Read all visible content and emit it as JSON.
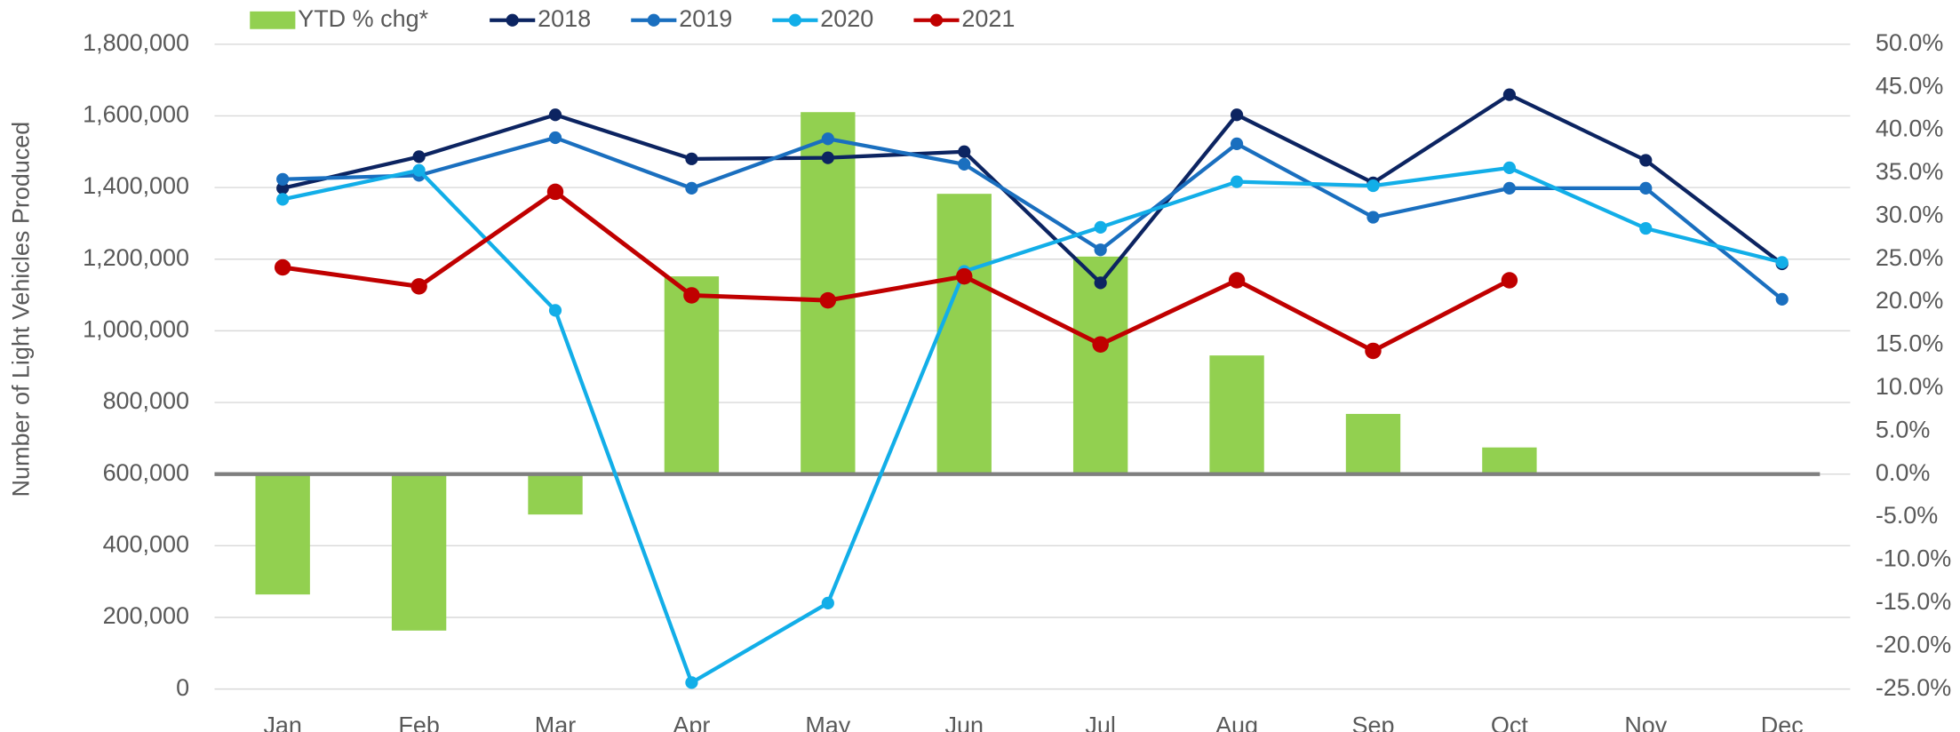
{
  "chart_data": {
    "type": "bar-line",
    "y_axis_label": "Number of Light Vehicles Produced",
    "categories": [
      "Jan",
      "Feb",
      "Mar",
      "Apr",
      "May",
      "Jun",
      "Jul",
      "Aug",
      "Sep",
      "Oct",
      "Nov",
      "Dec"
    ],
    "ylim": [
      0,
      1800000
    ],
    "yticks": [
      0,
      {
        "value": 200000,
        "label": "200,000"
      },
      {
        "value": 400000,
        "label": "400,000"
      },
      {
        "value": 600000,
        "label": "600,000"
      },
      {
        "value": 800000,
        "label": "800,000"
      },
      {
        "value": 1000000,
        "label": "1,000,000"
      },
      {
        "value": 1200000,
        "label": "1,200,000"
      },
      {
        "value": 1400000,
        "label": "1,400,000"
      },
      {
        "value": 1600000,
        "label": "1,600,000"
      },
      {
        "value": 1800000,
        "label": "1,800,000"
      }
    ],
    "y2lim": [
      -25,
      50
    ],
    "y2ticks": [
      {
        "value": -25,
        "label": "-25.0%"
      },
      {
        "value": -20,
        "label": "-20.0%"
      },
      {
        "value": -15,
        "label": "-15.0%"
      },
      {
        "value": -10,
        "label": "-10.0%"
      },
      {
        "value": -5,
        "label": "-5.0%"
      },
      {
        "value": 0,
        "label": "0.0%"
      },
      {
        "value": 5,
        "label": "5.0%"
      },
      {
        "value": 10,
        "label": "10.0%"
      },
      {
        "value": 15,
        "label": "15.0%"
      },
      {
        "value": 20,
        "label": "20.0%"
      },
      {
        "value": 25,
        "label": "25.0%"
      },
      {
        "value": 30,
        "label": "30.0%"
      },
      {
        "value": 35,
        "label": "35.0%"
      },
      {
        "value": 40,
        "label": "40.0%"
      },
      {
        "value": 45,
        "label": "45.0%"
      },
      {
        "value": 50,
        "label": "50.0%"
      }
    ],
    "grid": true,
    "legend": "top",
    "series": [
      {
        "name": "YTD % chg*",
        "type": "bar",
        "axis": "y2",
        "color": "#92d050",
        "values": [
          -14.0,
          -18.2,
          -4.7,
          23.0,
          42.1,
          32.6,
          25.3,
          13.8,
          7.0,
          3.1,
          null,
          null
        ]
      },
      {
        "name": "2018",
        "type": "line",
        "color": "#0c2461",
        "values": [
          1398000,
          1486000,
          1603000,
          1480000,
          1483000,
          1500000,
          1134000,
          1603000,
          1413000,
          1659000,
          1476000,
          1187000
        ]
      },
      {
        "name": "2019",
        "type": "line",
        "color": "#1a6fbf",
        "values": [
          1423000,
          1434000,
          1539000,
          1398000,
          1536000,
          1465000,
          1226000,
          1522000,
          1317000,
          1398000,
          1398000,
          1088000
        ]
      },
      {
        "name": "2020",
        "type": "line",
        "color": "#12aee8",
        "values": [
          1367000,
          1448000,
          1057000,
          18000,
          240000,
          1166000,
          1289000,
          1416000,
          1405000,
          1455000,
          1286000,
          1191000
        ]
      },
      {
        "name": "2021",
        "type": "line",
        "color": "#c00000",
        "values": [
          1177000,
          1124000,
          1388000,
          1099000,
          1085000,
          1152000,
          962000,
          1141000,
          944000,
          1141000,
          null,
          null
        ]
      }
    ]
  }
}
